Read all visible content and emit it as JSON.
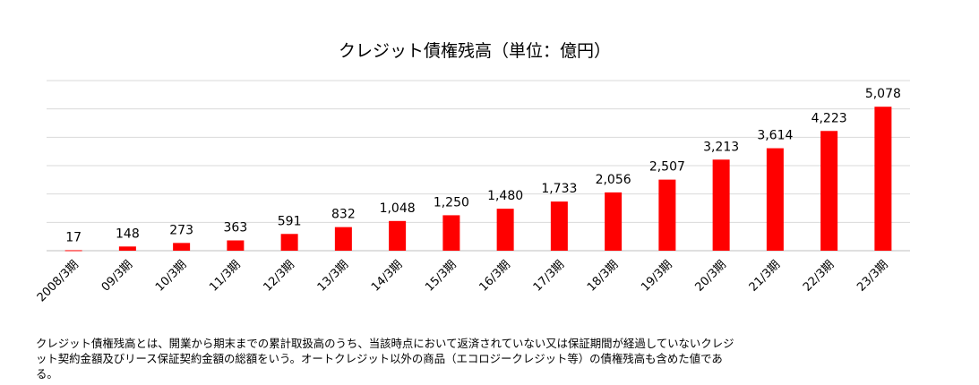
{
  "chart_data": {
    "type": "bar",
    "title": "クレジット債権残高（単位：億円）",
    "categories": [
      "2008/3期",
      "09/3期",
      "10/3期",
      "11/3期",
      "12/3期",
      "13/3期",
      "14/3期",
      "15/3期",
      "16/3期",
      "17/3期",
      "18/3期",
      "19/3期",
      "20/3期",
      "21/3期",
      "22/3期",
      "23/3期"
    ],
    "values": [
      17,
      148,
      273,
      363,
      591,
      832,
      1048,
      1250,
      1480,
      1733,
      2056,
      2507,
      3213,
      3614,
      4223,
      5078
    ],
    "value_labels": [
      "17",
      "148",
      "273",
      "363",
      "591",
      "832",
      "1,048",
      "1,250",
      "1,480",
      "1,733",
      "2,056",
      "2,507",
      "3,213",
      "3,614",
      "4,223",
      "5,078"
    ],
    "xlabel": "",
    "ylabel": "",
    "ylim": [
      0,
      6000
    ],
    "grid": true,
    "bar_color": "#ff0000",
    "grid_color": "#d9d9d9"
  },
  "note": {
    "text": "クレジット債権残高とは、開業から期末までの累計取扱高のうち、当該時点において返済されていない又は保証期間が経過していないクレジット契約金額及びリース保証契約金額の総額をいう。オートクレジット以外の商品（エコロジークレジット等）の債権残高も含めた値である。"
  }
}
